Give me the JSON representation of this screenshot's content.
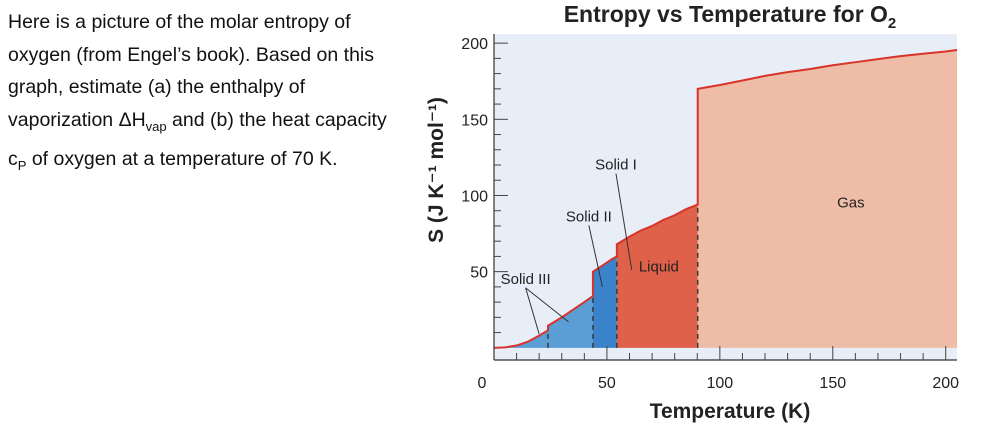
{
  "question": {
    "part1": "Here is a picture of the molar entropy of oxygen (from Engel’s book). Based on this graph, estimate (a) the enthalpy of vaporization ΔH",
    "vap_sub": "vap",
    "part2": " and (b) the heat capacity c",
    "p_sub": "P",
    "part3": " of oxygen at a temperature of 70 K."
  },
  "chart_data": {
    "type": "area",
    "title": "Entropy vs Temperature for O",
    "title_subscript": "2",
    "xlabel": "Temperature (K)",
    "ylabel": "S (J K⁻¹ mol⁻¹)",
    "xlim": [
      0,
      205
    ],
    "ylim": [
      -8,
      206
    ],
    "x_ticks": [
      0,
      50,
      100,
      150,
      200
    ],
    "y_ticks": [
      50,
      100,
      150,
      200
    ],
    "grid": false,
    "curve": {
      "x": [
        0,
        5,
        10,
        15,
        20,
        23.9,
        23.9,
        30,
        35,
        40,
        43.8,
        43.8,
        48,
        52,
        54.4,
        54.4,
        60,
        65,
        70,
        75,
        80,
        85,
        90.2,
        90.2,
        100,
        110,
        120,
        130,
        140,
        150,
        160,
        170,
        180,
        190,
        200,
        205
      ],
      "y": [
        0,
        0.3,
        1.5,
        4,
        8,
        11.5,
        14.5,
        20,
        25,
        30,
        34,
        50,
        54,
        58,
        60,
        68,
        73,
        77,
        80,
        84,
        87,
        91,
        94,
        170,
        172.5,
        175.5,
        178.5,
        181,
        183,
        185.5,
        187.5,
        189.5,
        191.5,
        193,
        194.5,
        195.5
      ]
    },
    "phase_boundaries_K": [
      23.9,
      43.8,
      54.4,
      90.2
    ],
    "phases": [
      {
        "name": "Solid III",
        "from": 0,
        "to": 43.8,
        "color": "#5b9ed6"
      },
      {
        "name": "Solid II",
        "from": 43.8,
        "to": 54.4,
        "color": "#3a82c9"
      },
      {
        "name": "Liquid",
        "from": 54.4,
        "to": 90.2,
        "color": "#e0614a"
      },
      {
        "name": "Gas",
        "from": 90.2,
        "to": 205,
        "color": "#efbda7"
      }
    ],
    "labels": [
      {
        "text": "Solid I",
        "x": 54,
        "y": 117,
        "pointer": [
          61,
          51
        ]
      },
      {
        "text": "Solid II",
        "x": 42,
        "y": 83,
        "pointer": [
          48,
          40
        ]
      },
      {
        "text": "Solid III",
        "x": 14,
        "y": 42,
        "pointer": [
          20,
          9
        ],
        "pointer2": [
          33,
          17
        ]
      },
      {
        "text": "Liquid",
        "x": 73,
        "y": 50
      },
      {
        "text": "Gas",
        "x": 158,
        "y": 92
      }
    ],
    "colors": {
      "plot_bg": "#e8eef8",
      "curve": "#d8342a",
      "boundary": "#333333"
    }
  }
}
